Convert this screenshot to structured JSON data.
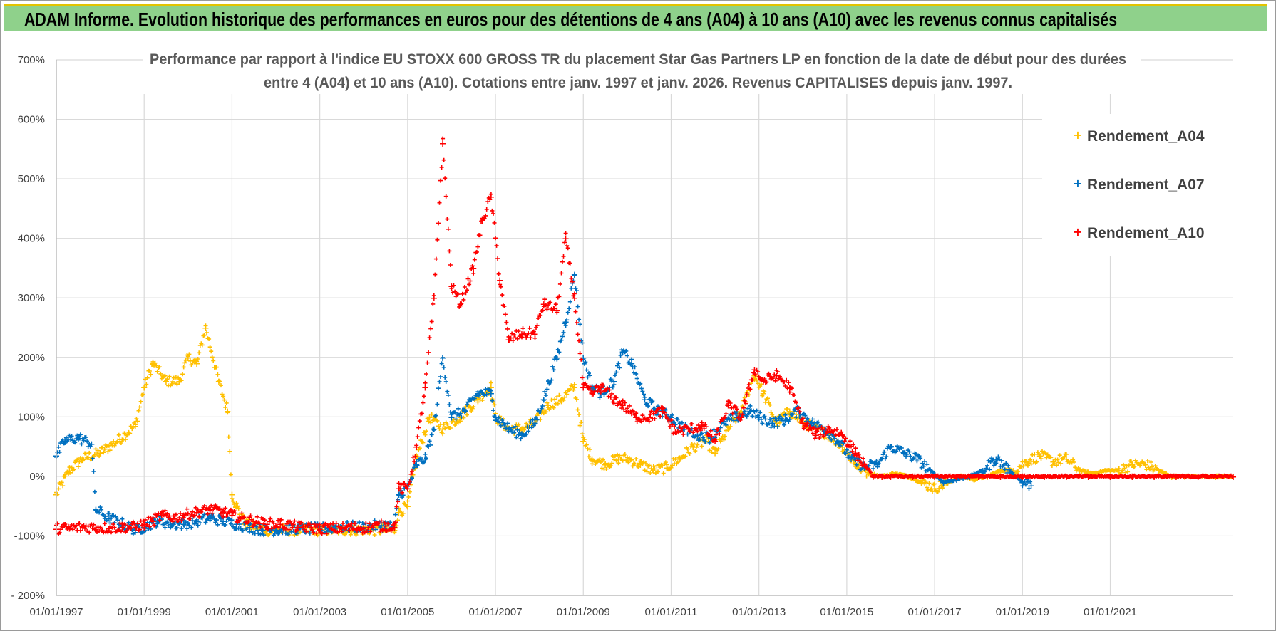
{
  "banner": {
    "title": "ADAM Informe. Evolution historique des performances en euros pour des détentions de 4 ans (A04) à 10 ans (A10) avec les revenus connus capitalisés"
  },
  "colors": {
    "A04": "#ffc000",
    "A07": "#0070c0",
    "A10": "#ff0000",
    "banner": "#8fd18b",
    "grid": "#d9d9d9"
  },
  "chart_data": {
    "type": "scatter",
    "title_line1": "Performance par rapport à l'indice EU STOXX 600 GROSS TR  du placement Star Gas Partners LP en fonction de la date de début pour des durées",
    "title_line2": "entre 4 (A04) et 10 ans (A10).  Cotations entre janv. 1997 et janv. 2026. Revenus CAPITALISES depuis janv. 1997.",
    "xlabel": "",
    "ylabel": "",
    "x_range": [
      1997.0,
      2023.8
    ],
    "ylim": [
      -200,
      700
    ],
    "y_ticks": [
      "- 200%",
      "-100%",
      "0%",
      "100%",
      "200%",
      "300%",
      "400%",
      "500%",
      "600%",
      "700%"
    ],
    "y_tick_values": [
      -200,
      -100,
      0,
      100,
      200,
      300,
      400,
      500,
      600,
      700
    ],
    "x_ticks": [
      "01/01/1997",
      "01/01/1999",
      "01/01/2001",
      "01/01/2003",
      "01/01/2005",
      "01/01/2007",
      "01/01/2009",
      "01/01/2011",
      "01/01/2013",
      "01/01/2015",
      "01/01/2017",
      "01/01/2019",
      "01/01/2021"
    ],
    "x_tick_values": [
      1997,
      1999,
      2001,
      2003,
      2005,
      2007,
      2009,
      2011,
      2013,
      2015,
      2017,
      2019,
      2021
    ],
    "legend_position": "top-right",
    "series": [
      {
        "name": "Rendement_A04",
        "key": "A04",
        "points": [
          [
            1997.0,
            -30
          ],
          [
            1997.3,
            10
          ],
          [
            1997.6,
            30
          ],
          [
            1998.0,
            40
          ],
          [
            1998.4,
            60
          ],
          [
            1998.8,
            85
          ],
          [
            1999.0,
            150
          ],
          [
            1999.2,
            190
          ],
          [
            1999.5,
            160
          ],
          [
            1999.8,
            160
          ],
          [
            2000.0,
            200
          ],
          [
            2000.2,
            190
          ],
          [
            2000.4,
            250
          ],
          [
            2000.7,
            160
          ],
          [
            2000.9,
            110
          ],
          [
            2001.0,
            -30
          ],
          [
            2001.1,
            -50
          ],
          [
            2001.3,
            -80
          ],
          [
            2001.8,
            -90
          ],
          [
            2002.5,
            -90
          ],
          [
            2003.0,
            -90
          ],
          [
            2003.5,
            -90
          ],
          [
            2004.0,
            -90
          ],
          [
            2004.5,
            -90
          ],
          [
            2004.7,
            -90
          ],
          [
            2004.8,
            -60
          ],
          [
            2005.0,
            -50
          ],
          [
            2005.2,
            30
          ],
          [
            2005.5,
            100
          ],
          [
            2005.8,
            80
          ],
          [
            2006.2,
            100
          ],
          [
            2006.6,
            130
          ],
          [
            2006.9,
            150
          ],
          [
            2007.0,
            100
          ],
          [
            2007.3,
            80
          ],
          [
            2007.6,
            80
          ],
          [
            2007.9,
            90
          ],
          [
            2008.2,
            120
          ],
          [
            2008.5,
            130
          ],
          [
            2008.8,
            150
          ],
          [
            2009.0,
            60
          ],
          [
            2009.2,
            30
          ],
          [
            2009.5,
            20
          ],
          [
            2009.8,
            30
          ],
          [
            2010.0,
            30
          ],
          [
            2010.3,
            20
          ],
          [
            2010.6,
            10
          ],
          [
            2010.9,
            15
          ],
          [
            2011.2,
            30
          ],
          [
            2011.5,
            50
          ],
          [
            2011.8,
            60
          ],
          [
            2012.0,
            40
          ],
          [
            2012.3,
            80
          ],
          [
            2012.6,
            110
          ],
          [
            2012.9,
            170
          ],
          [
            2013.1,
            140
          ],
          [
            2013.4,
            90
          ],
          [
            2013.7,
            110
          ],
          [
            2014.0,
            90
          ],
          [
            2014.3,
            80
          ],
          [
            2014.6,
            70
          ],
          [
            2014.9,
            50
          ],
          [
            2015.2,
            20
          ],
          [
            2015.5,
            5
          ],
          [
            2015.8,
            0
          ],
          [
            2016.1,
            5
          ],
          [
            2016.4,
            0
          ],
          [
            2016.7,
            -10
          ],
          [
            2017.0,
            -20
          ],
          [
            2017.3,
            -10
          ],
          [
            2017.6,
            0
          ],
          [
            2017.9,
            -5
          ],
          [
            2018.2,
            0
          ],
          [
            2018.5,
            10
          ],
          [
            2018.8,
            10
          ],
          [
            2019.1,
            25
          ],
          [
            2019.4,
            35
          ],
          [
            2019.7,
            25
          ],
          [
            2020.0,
            30
          ],
          [
            2020.3,
            10
          ],
          [
            2020.6,
            5
          ],
          [
            2020.9,
            10
          ],
          [
            2021.2,
            10
          ],
          [
            2021.5,
            20
          ],
          [
            2021.8,
            20
          ],
          [
            2022.1,
            10
          ],
          [
            2022.4,
            0
          ],
          [
            2022.7,
            0
          ],
          [
            2023.0,
            0
          ],
          [
            2023.4,
            0
          ],
          [
            2023.8,
            0
          ]
        ]
      },
      {
        "name": "Rendement_A07",
        "key": "A07",
        "points": [
          [
            1997.0,
            35
          ],
          [
            1997.2,
            60
          ],
          [
            1997.5,
            65
          ],
          [
            1997.8,
            55
          ],
          [
            1997.9,
            -55
          ],
          [
            1998.2,
            -70
          ],
          [
            1998.5,
            -80
          ],
          [
            1998.8,
            -90
          ],
          [
            1999.0,
            -85
          ],
          [
            1999.3,
            -75
          ],
          [
            1999.6,
            -80
          ],
          [
            1999.9,
            -80
          ],
          [
            2000.2,
            -75
          ],
          [
            2000.5,
            -70
          ],
          [
            2000.8,
            -75
          ],
          [
            2001.1,
            -80
          ],
          [
            2001.4,
            -85
          ],
          [
            2001.7,
            -90
          ],
          [
            2002.0,
            -90
          ],
          [
            2002.5,
            -88
          ],
          [
            2003.0,
            -88
          ],
          [
            2003.5,
            -85
          ],
          [
            2004.0,
            -85
          ],
          [
            2004.5,
            -82
          ],
          [
            2004.7,
            -85
          ],
          [
            2004.8,
            -30
          ],
          [
            2005.0,
            -20
          ],
          [
            2005.2,
            20
          ],
          [
            2005.4,
            30
          ],
          [
            2005.6,
            80
          ],
          [
            2005.8,
            200
          ],
          [
            2006.0,
            100
          ],
          [
            2006.3,
            110
          ],
          [
            2006.6,
            140
          ],
          [
            2006.9,
            140
          ],
          [
            2007.0,
            100
          ],
          [
            2007.3,
            80
          ],
          [
            2007.6,
            70
          ],
          [
            2007.9,
            90
          ],
          [
            2008.1,
            130
          ],
          [
            2008.4,
            200
          ],
          [
            2008.6,
            260
          ],
          [
            2008.8,
            340
          ],
          [
            2009.0,
            200
          ],
          [
            2009.2,
            150
          ],
          [
            2009.4,
            140
          ],
          [
            2009.7,
            160
          ],
          [
            2009.9,
            210
          ],
          [
            2010.1,
            190
          ],
          [
            2010.4,
            130
          ],
          [
            2010.7,
            110
          ],
          [
            2011.0,
            100
          ],
          [
            2011.3,
            80
          ],
          [
            2011.6,
            70
          ],
          [
            2011.9,
            65
          ],
          [
            2012.2,
            90
          ],
          [
            2012.5,
            100
          ],
          [
            2012.8,
            110
          ],
          [
            2013.0,
            100
          ],
          [
            2013.3,
            90
          ],
          [
            2013.6,
            95
          ],
          [
            2013.9,
            110
          ],
          [
            2014.2,
            90
          ],
          [
            2014.5,
            80
          ],
          [
            2014.8,
            60
          ],
          [
            2015.1,
            30
          ],
          [
            2015.4,
            15
          ],
          [
            2015.7,
            20
          ],
          [
            2016.0,
            50
          ],
          [
            2016.3,
            40
          ],
          [
            2016.6,
            30
          ],
          [
            2016.9,
            10
          ],
          [
            2017.2,
            -10
          ],
          [
            2017.5,
            -5
          ],
          [
            2017.8,
            0
          ],
          [
            2018.1,
            10
          ],
          [
            2018.4,
            30
          ],
          [
            2018.7,
            10
          ],
          [
            2019.0,
            -10
          ],
          [
            2019.2,
            -15
          ]
        ]
      },
      {
        "name": "Rendement_A10",
        "key": "A10",
        "points": [
          [
            1997.0,
            -88
          ],
          [
            1997.3,
            -87
          ],
          [
            1997.6,
            -85
          ],
          [
            1997.9,
            -86
          ],
          [
            1998.2,
            -87
          ],
          [
            1998.5,
            -85
          ],
          [
            1998.8,
            -85
          ],
          [
            1999.0,
            -80
          ],
          [
            1999.2,
            -75
          ],
          [
            1999.4,
            -65
          ],
          [
            1999.7,
            -70
          ],
          [
            1999.9,
            -65
          ],
          [
            2000.2,
            -60
          ],
          [
            2000.5,
            -55
          ],
          [
            2000.8,
            -60
          ],
          [
            2001.0,
            -65
          ],
          [
            2001.2,
            -70
          ],
          [
            2001.5,
            -75
          ],
          [
            2001.8,
            -80
          ],
          [
            2002.1,
            -80
          ],
          [
            2002.5,
            -85
          ],
          [
            2003.0,
            -88
          ],
          [
            2003.5,
            -87
          ],
          [
            2004.0,
            -86
          ],
          [
            2004.5,
            -83
          ],
          [
            2004.7,
            -85
          ],
          [
            2004.8,
            -20
          ],
          [
            2005.0,
            -20
          ],
          [
            2005.2,
            50
          ],
          [
            2005.4,
            150
          ],
          [
            2005.6,
            300
          ],
          [
            2005.8,
            560
          ],
          [
            2006.0,
            320
          ],
          [
            2006.2,
            290
          ],
          [
            2006.5,
            350
          ],
          [
            2006.7,
            430
          ],
          [
            2006.9,
            470
          ],
          [
            2007.1,
            330
          ],
          [
            2007.3,
            230
          ],
          [
            2007.6,
            240
          ],
          [
            2007.9,
            240
          ],
          [
            2008.1,
            290
          ],
          [
            2008.4,
            280
          ],
          [
            2008.6,
            400
          ],
          [
            2008.8,
            300
          ],
          [
            2009.0,
            150
          ],
          [
            2009.2,
            140
          ],
          [
            2009.4,
            150
          ],
          [
            2009.7,
            130
          ],
          [
            2009.9,
            120
          ],
          [
            2010.2,
            100
          ],
          [
            2010.5,
            100
          ],
          [
            2010.8,
            110
          ],
          [
            2011.1,
            75
          ],
          [
            2011.4,
            80
          ],
          [
            2011.7,
            85
          ],
          [
            2012.0,
            60
          ],
          [
            2012.3,
            120
          ],
          [
            2012.6,
            100
          ],
          [
            2012.9,
            180
          ],
          [
            2013.1,
            160
          ],
          [
            2013.4,
            170
          ],
          [
            2013.7,
            150
          ],
          [
            2014.0,
            90
          ],
          [
            2014.3,
            70
          ],
          [
            2014.6,
            80
          ],
          [
            2014.9,
            70
          ],
          [
            2015.2,
            40
          ],
          [
            2015.4,
            20
          ],
          [
            2015.6,
            0
          ],
          [
            2015.8,
            0
          ],
          [
            2016.0,
            0
          ],
          [
            2016.5,
            0
          ],
          [
            2017.0,
            0
          ],
          [
            2017.5,
            0
          ],
          [
            2018.0,
            0
          ],
          [
            2018.5,
            0
          ],
          [
            2019.0,
            0
          ],
          [
            2019.5,
            0
          ],
          [
            2020.0,
            0
          ],
          [
            2020.5,
            0
          ],
          [
            2021.0,
            0
          ],
          [
            2021.5,
            0
          ],
          [
            2022.0,
            0
          ],
          [
            2022.5,
            0
          ],
          [
            2023.0,
            0
          ],
          [
            2023.8,
            0
          ]
        ]
      }
    ]
  }
}
